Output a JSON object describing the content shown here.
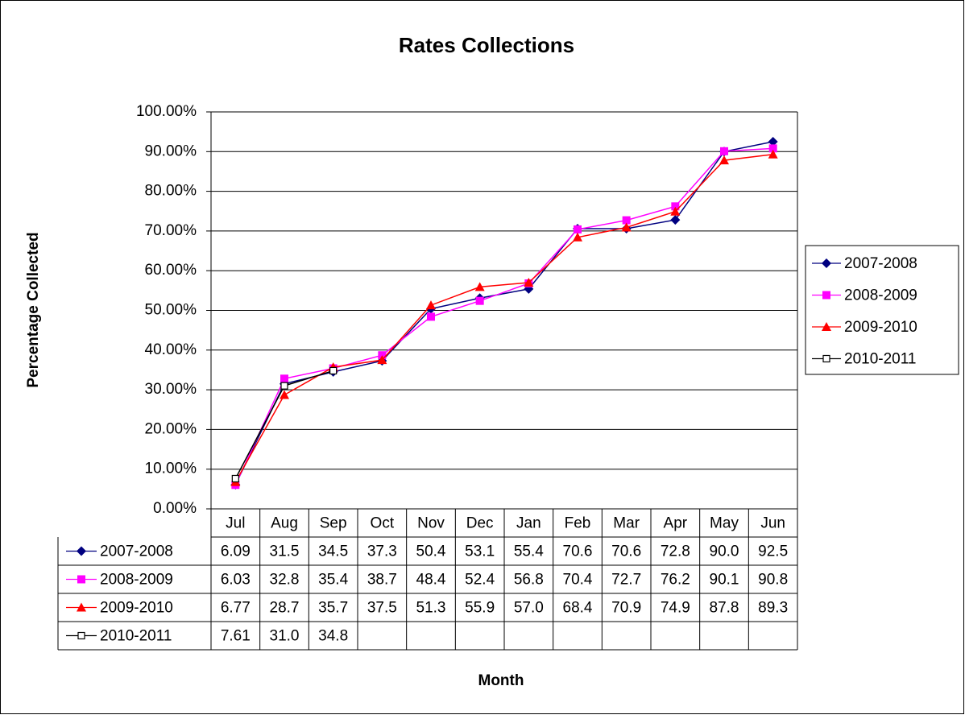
{
  "chart_data": {
    "type": "line",
    "title": "Rates Collections",
    "x_label": "Month",
    "y_label": "Percentage Collected",
    "categories": [
      "Jul",
      "Aug",
      "Sep",
      "Oct",
      "Nov",
      "Dec",
      "Jan",
      "Feb",
      "Mar",
      "Apr",
      "May",
      "Jun"
    ],
    "ylim": [
      0,
      100
    ],
    "yticks": [
      {
        "value": 0,
        "label": "0.00%"
      },
      {
        "value": 10,
        "label": "10.00%"
      },
      {
        "value": 20,
        "label": "20.00%"
      },
      {
        "value": 30,
        "label": "30.00%"
      },
      {
        "value": 40,
        "label": "40.00%"
      },
      {
        "value": 50,
        "label": "50.00%"
      },
      {
        "value": 60,
        "label": "60.00%"
      },
      {
        "value": 70,
        "label": "70.00%"
      },
      {
        "value": 80,
        "label": "80.00%"
      },
      {
        "value": 90,
        "label": "90.00%"
      },
      {
        "value": 100,
        "label": "100.00%"
      }
    ],
    "grid": true,
    "legend": "right",
    "series": [
      {
        "name": "2007-2008",
        "color": "#000080",
        "marker": "diamond",
        "values": [
          6.09,
          31.5,
          34.5,
          37.3,
          50.4,
          53.1,
          55.4,
          70.6,
          70.6,
          72.8,
          90.0,
          92.5
        ],
        "value_labels": [
          "6.09",
          "31.5",
          "34.5",
          "37.3",
          "50.4",
          "53.1",
          "55.4",
          "70.6",
          "70.6",
          "72.8",
          "90.0",
          "92.5"
        ]
      },
      {
        "name": "2008-2009",
        "color": "#ff00ff",
        "marker": "square",
        "values": [
          6.03,
          32.8,
          35.4,
          38.7,
          48.4,
          52.4,
          56.8,
          70.4,
          72.7,
          76.2,
          90.1,
          90.8
        ],
        "value_labels": [
          "6.03",
          "32.8",
          "35.4",
          "38.7",
          "48.4",
          "52.4",
          "56.8",
          "70.4",
          "72.7",
          "76.2",
          "90.1",
          "90.8"
        ]
      },
      {
        "name": "2009-2010",
        "color": "#ff0000",
        "marker": "triangle",
        "values": [
          6.77,
          28.7,
          35.7,
          37.5,
          51.3,
          55.9,
          57.0,
          68.4,
          70.9,
          74.9,
          87.8,
          89.3
        ],
        "value_labels": [
          "6.77",
          "28.7",
          "35.7",
          "37.5",
          "51.3",
          "55.9",
          "57.0",
          "68.4",
          "70.9",
          "74.9",
          "87.8",
          "89.3"
        ]
      },
      {
        "name": "2010-2011",
        "color": "#000000",
        "marker": "hollow-square",
        "values": [
          7.61,
          31.0,
          34.8,
          null,
          null,
          null,
          null,
          null,
          null,
          null,
          null,
          null
        ],
        "value_labels": [
          "7.61",
          "31.0",
          "34.8",
          null,
          null,
          null,
          null,
          null,
          null,
          null,
          null,
          null
        ]
      }
    ]
  }
}
